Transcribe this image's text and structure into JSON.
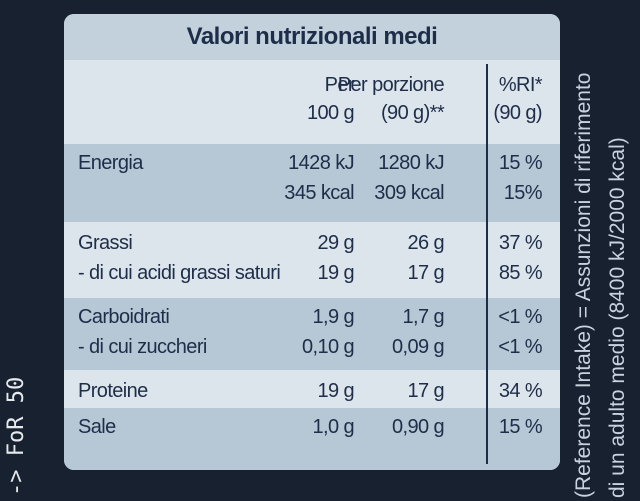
{
  "header": {
    "title": "Valori nutrizionali medi"
  },
  "table": {
    "columns": [
      [
        "Per",
        "100 g"
      ],
      [
        "Per porzione",
        "(90 g)**"
      ],
      [
        "%RI*",
        "(90 g)"
      ]
    ],
    "rows": [
      {
        "label": [
          "Energia"
        ],
        "per_100g": [
          "1428 kJ",
          "345 kcal"
        ],
        "per_portion": [
          "1280 kJ",
          "309 kcal"
        ],
        "ri": [
          "15 %",
          "15%"
        ]
      },
      {
        "label": [
          "Grassi",
          "- di cui acidi grassi saturi"
        ],
        "per_100g": [
          "29 g",
          "19 g"
        ],
        "per_portion": [
          "26 g",
          "17 g"
        ],
        "ri": [
          "37 %",
          "85 %"
        ]
      },
      {
        "label": [
          "Carboidrati",
          "- di cui zuccheri"
        ],
        "per_100g": [
          "1,9 g",
          "0,10 g"
        ],
        "per_portion": [
          "1,7 g",
          "0,09 g"
        ],
        "ri": [
          "<1 %",
          "<1 %"
        ]
      },
      {
        "label": [
          "Proteine"
        ],
        "per_100g": [
          "19 g"
        ],
        "per_portion": [
          "17 g"
        ],
        "ri": [
          "34 %"
        ]
      },
      {
        "label": [
          "Sale"
        ],
        "per_100g": [
          "1,0 g"
        ],
        "per_portion": [
          "0,90 g"
        ],
        "ri": [
          "15 %"
        ]
      }
    ]
  },
  "side_note": [
    "(Reference Intake) = Assunzioni di riferimento",
    "di un adulto medio (8400 kJ/2000 kcal)"
  ],
  "handwriting": "-> FoR 50"
}
